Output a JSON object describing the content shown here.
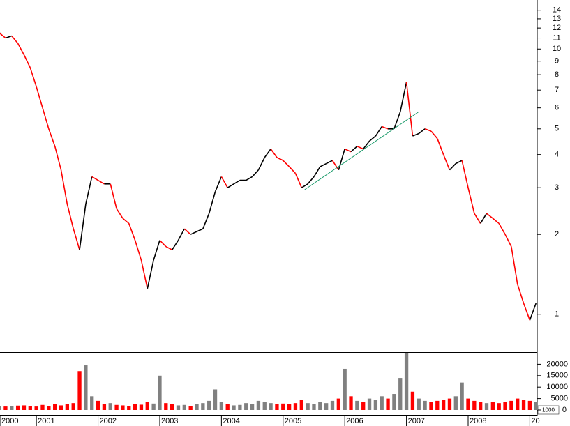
{
  "chart_data": {
    "type": "price_volume",
    "log_scale": true,
    "up_color": "#000000",
    "down_color": "#ff0000",
    "volume_up_color": "#808080",
    "x": [
      2000.4,
      2000.5,
      2000.6,
      2000.7,
      2000.8,
      2000.9,
      2001.0,
      2001.1,
      2001.2,
      2001.3,
      2001.4,
      2001.5,
      2001.6,
      2001.7,
      2001.8,
      2001.9,
      2002.0,
      2002.1,
      2002.2,
      2002.3,
      2002.4,
      2002.5,
      2002.6,
      2002.7,
      2002.8,
      2002.9,
      2003.0,
      2003.1,
      2003.2,
      2003.3,
      2003.4,
      2003.5,
      2003.6,
      2003.7,
      2003.8,
      2003.9,
      2004.0,
      2004.1,
      2004.2,
      2004.3,
      2004.4,
      2004.5,
      2004.6,
      2004.7,
      2004.8,
      2004.9,
      2005.0,
      2005.1,
      2005.2,
      2005.3,
      2005.4,
      2005.5,
      2005.6,
      2005.7,
      2005.8,
      2005.9,
      2006.0,
      2006.1,
      2006.2,
      2006.3,
      2006.4,
      2006.5,
      2006.6,
      2006.7,
      2006.8,
      2006.9,
      2007.0,
      2007.1,
      2007.2,
      2007.3,
      2007.4,
      2007.5,
      2007.6,
      2007.7,
      2007.8,
      2007.9,
      2008.0,
      2008.1,
      2008.2,
      2008.3,
      2008.4,
      2008.5,
      2008.6,
      2008.7,
      2008.8,
      2008.9,
      2009.0,
      2009.1
    ],
    "price": [
      11.5,
      11.0,
      11.2,
      10.5,
      9.5,
      8.5,
      7.2,
      6.0,
      5.0,
      4.3,
      3.5,
      2.6,
      2.1,
      1.75,
      2.6,
      3.3,
      3.2,
      3.1,
      3.1,
      2.5,
      2.3,
      2.2,
      1.9,
      1.6,
      1.25,
      1.6,
      1.9,
      1.8,
      1.75,
      1.9,
      2.1,
      2.0,
      2.05,
      2.1,
      2.4,
      2.9,
      3.3,
      3.0,
      3.1,
      3.2,
      3.2,
      3.3,
      3.5,
      3.9,
      4.2,
      3.9,
      3.8,
      3.6,
      3.4,
      3.0,
      3.1,
      3.3,
      3.6,
      3.7,
      3.8,
      3.5,
      4.2,
      4.1,
      4.3,
      4.2,
      4.5,
      4.7,
      5.1,
      5.0,
      5.0,
      5.8,
      7.5,
      4.7,
      4.8,
      5.0,
      4.9,
      4.6,
      4.0,
      3.5,
      3.7,
      3.8,
      3.0,
      2.4,
      2.2,
      2.4,
      2.3,
      2.2,
      2.0,
      1.8,
      1.3,
      1.1,
      0.95,
      1.1
    ],
    "volume": [
      1800,
      1500,
      1600,
      1900,
      2000,
      1700,
      1500,
      2200,
      1800,
      2500,
      2000,
      2600,
      3000,
      17000,
      19500,
      6000,
      4000,
      2500,
      3000,
      2200,
      2000,
      1800,
      2500,
      2300,
      3500,
      2800,
      15000,
      3000,
      2500,
      2000,
      2200,
      1800,
      2500,
      3000,
      4000,
      9000,
      3500,
      2500,
      2000,
      2200,
      3000,
      2500,
      4000,
      3500,
      3000,
      2500,
      2800,
      2500,
      3000,
      4500,
      3000,
      2500,
      3500,
      3000,
      4000,
      5000,
      18000,
      6000,
      4000,
      3500,
      5000,
      4500,
      6000,
      5000,
      7000,
      14000,
      25000,
      8000,
      5000,
      4000,
      3500,
      4000,
      4500,
      5000,
      6000,
      12000,
      5000,
      4000,
      3500,
      3000,
      3500,
      3000,
      3500,
      4000,
      5000,
      4500,
      4000,
      3500
    ],
    "trendline": {
      "color": "#1a9a6a",
      "x": [
        2005.35,
        2007.2
      ],
      "y": [
        2.95,
        5.8
      ]
    },
    "xlim": [
      2000.41,
      2009.12
    ],
    "xticks": [
      {
        "value": 2000.41,
        "label": "2000"
      },
      2001,
      2002,
      2003,
      2004,
      2005,
      2006,
      2007,
      2008,
      {
        "value": 2009,
        "label": "20"
      }
    ],
    "ylim": [
      0.72,
      15.3
    ],
    "yticks": [
      1,
      2,
      3,
      4,
      5,
      6,
      7,
      8,
      9,
      10,
      11,
      12,
      13,
      14
    ],
    "y2lim": [
      0,
      25000
    ],
    "y2ticks": [
      0,
      5000,
      10000,
      15000,
      20000
    ],
    "volume_unit": "1000"
  }
}
